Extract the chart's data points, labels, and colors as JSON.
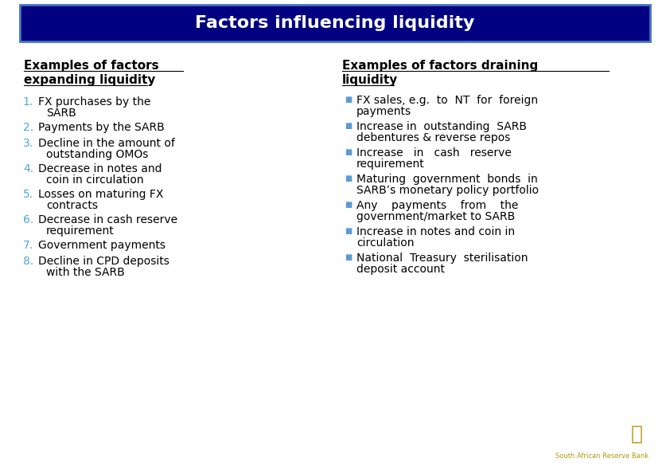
{
  "title": "Factors influencing liquidity",
  "title_bg_color": "#000080",
  "title_text_color": "#ffffff",
  "title_border_color": "#4472c4",
  "left_heading_line1": "Examples of factors",
  "left_heading_line2": "expanding liquidity",
  "left_heading_color": "#000000",
  "left_items": [
    [
      "FX purchases by the",
      "    SARB"
    ],
    [
      "Payments by the SARB",
      ""
    ],
    [
      "Decline in the amount of",
      "    outstanding OMOs"
    ],
    [
      "Decrease in notes and",
      "    coin in circulation"
    ],
    [
      "Losses on maturing FX",
      "    contracts"
    ],
    [
      "Decrease in cash reserve",
      "    requirement"
    ],
    [
      "Government payments",
      ""
    ],
    [
      "Decline in CPD deposits",
      "    with the SARB"
    ]
  ],
  "left_numbers_color": "#4da6d9",
  "left_text_color": "#000000",
  "right_heading_line1": "Examples of factors draining",
  "right_heading_line2": "liquidity",
  "right_heading_color": "#000000",
  "right_bullet_color": "#5b9bd5",
  "right_text_color": "#000000",
  "right_items": [
    [
      "FX sales, e.g.  to  NT  for  foreign",
      "payments"
    ],
    [
      "Increase in  outstanding  SARB",
      "debentures & reverse repos"
    ],
    [
      "Increase   in   cash   reserve",
      "requirement"
    ],
    [
      "Maturing  government  bonds  in",
      "SARB’s monetary policy portfolio"
    ],
    [
      "Any    payments    from    the",
      "government/market to SARB"
    ],
    [
      "Increase in notes and coin in",
      "circulation"
    ],
    [
      "National  Treasury  sterilisation",
      "deposit account"
    ]
  ],
  "bg_color": "#ffffff",
  "font_family": "DejaVu Sans",
  "sarb_logo_color": "#b8960c",
  "sarb_text_color": "#b8960c",
  "title_fontsize": 16,
  "heading_fontsize": 11,
  "item_fontsize": 10,
  "fig_width": 8.42,
  "fig_height": 5.95,
  "dpi": 100
}
